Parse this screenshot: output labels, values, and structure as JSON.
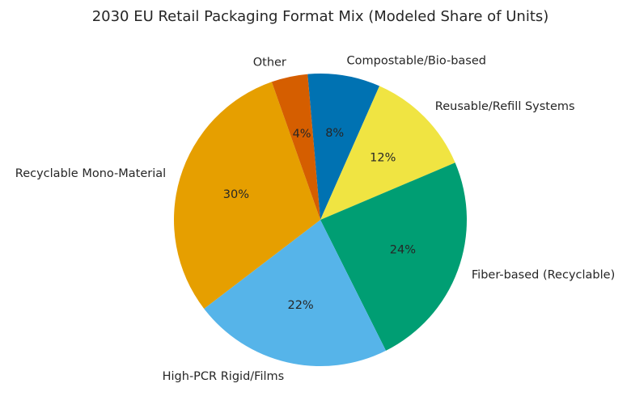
{
  "chart_data": {
    "type": "pie",
    "title": "2030 EU Retail Packaging Format Mix (Modeled Share of Units)",
    "start_angle_deg": 95,
    "direction": "clockwise",
    "slices": [
      {
        "label": "Compostable/Bio-based",
        "value": 8,
        "display": "8%",
        "color": "#0072B2"
      },
      {
        "label": "Reusable/Refill Systems",
        "value": 12,
        "display": "12%",
        "color": "#F0E442"
      },
      {
        "label": "Fiber-based (Recyclable)",
        "value": 24,
        "display": "24%",
        "color": "#009E73"
      },
      {
        "label": "High-PCR Rigid/Films",
        "value": 22,
        "display": "22%",
        "color": "#56B4E9"
      },
      {
        "label": "Recyclable Mono-Material",
        "value": 30,
        "display": "30%",
        "color": "#E69F00"
      },
      {
        "label": "Other",
        "value": 4,
        "display": "4%",
        "color": "#D55E00"
      }
    ]
  }
}
